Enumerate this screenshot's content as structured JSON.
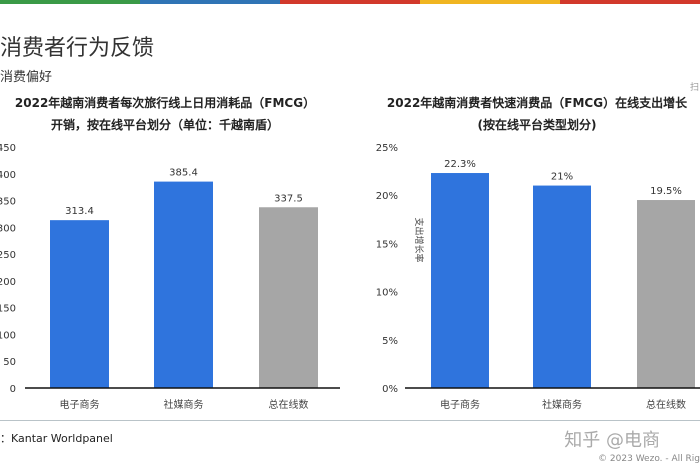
{
  "header": {
    "title": "消费者行为反馈",
    "subtitle": "消费偏好",
    "corner": "扫"
  },
  "colors": {
    "blue": "#2f74dd",
    "gray": "#a6a6a6",
    "topbar": [
      "#3a9a47",
      "#2f74b5",
      "#d2392b",
      "#f0b521",
      "#d2392b"
    ]
  },
  "chart_data": [
    {
      "type": "bar",
      "title_line1": "2022年越南消费者每次旅行线上日用消耗品（FMCG）",
      "title_line2": "开销，按在线平台划分（单位：千越南盾）",
      "categories": [
        "电子商务",
        "社媒商务",
        "总在线数"
      ],
      "values": [
        313.4,
        385.4,
        337.5
      ],
      "labels": [
        "313.4",
        "385.4",
        "337.5"
      ],
      "ylim": [
        0,
        450
      ],
      "yticks": [
        "0",
        "50",
        "100",
        "150",
        "200",
        "250",
        "300",
        "350",
        "400",
        "450"
      ],
      "bar_colors": [
        "blue",
        "blue",
        "gray"
      ],
      "grid": false
    },
    {
      "type": "bar",
      "title_line1": "2022年越南消费者快速消费品（FMCG）在线支出增长",
      "title_line2": "(按在线平台类型划分)",
      "ylabel": "支出增长率",
      "categories": [
        "电子商务",
        "社媒商务",
        "总在线数"
      ],
      "values": [
        22.3,
        21,
        19.5
      ],
      "labels": [
        "22.3%",
        "21%",
        "19.5%"
      ],
      "ylim": [
        0,
        25
      ],
      "yticks": [
        "0%",
        "5%",
        "10%",
        "15%",
        "20%",
        "25%"
      ],
      "bar_colors": [
        "blue",
        "blue",
        "gray"
      ],
      "grid": false
    }
  ],
  "footer": {
    "source": "：Kantar Worldpanel",
    "watermark": "知乎 @电商",
    "copyright": "© 2023 Wezo. - All Rig"
  }
}
